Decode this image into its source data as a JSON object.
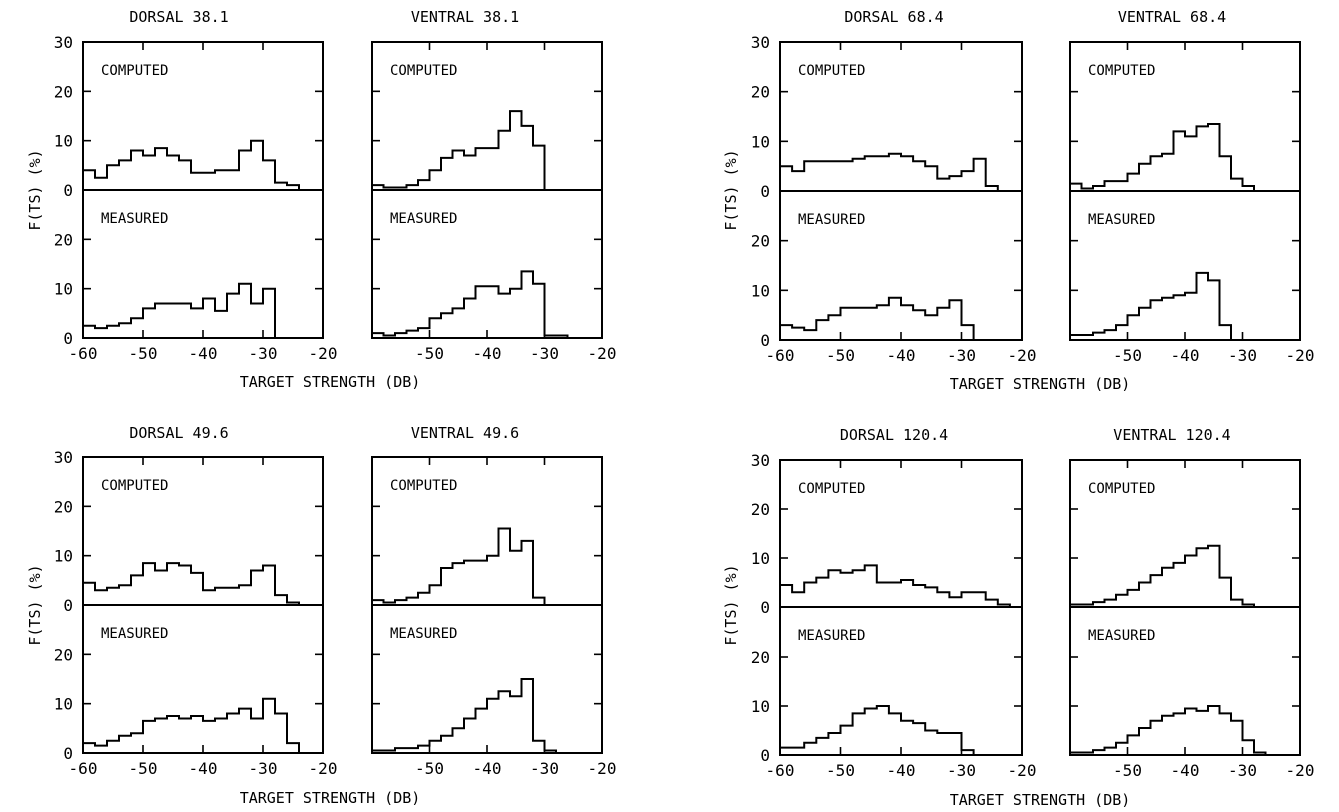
{
  "figure": {
    "x_tick_labels": [
      "-60",
      "-50",
      "-40",
      "-30",
      "-20"
    ],
    "y_tick_labels": [
      "0",
      "10",
      "20",
      "30"
    ],
    "y_axis_label": "F(TS) (%)",
    "x_axis_label": "TARGET STRENGTH (DB)",
    "computed_label": "COMPUTED",
    "measured_label": "MEASURED"
  },
  "chart_data": [
    {
      "type": "bar",
      "title": "DORSAL 38.1",
      "x_bin_edges": [
        -60,
        -58,
        -56,
        -54,
        -52,
        -50,
        -48,
        -46,
        -44,
        -42,
        -40,
        -38,
        -36,
        -34,
        -32,
        -30,
        -28,
        -26,
        -24,
        -22,
        -20
      ],
      "series": [
        {
          "name": "COMPUTED",
          "values": [
            4,
            2.5,
            5,
            6,
            8,
            7,
            8.5,
            7,
            6,
            3.5,
            3.5,
            4,
            4,
            8,
            10,
            6,
            1.5,
            1,
            0,
            0
          ]
        },
        {
          "name": "MEASURED",
          "values": [
            2.5,
            2,
            2.5,
            3,
            4,
            6,
            7,
            7,
            7,
            6,
            8,
            5.5,
            9,
            11,
            7,
            10,
            0,
            0,
            0,
            0
          ]
        }
      ],
      "xlim": [
        -60,
        -20
      ],
      "ylim": [
        0,
        30
      ]
    },
    {
      "type": "bar",
      "title": "VENTRAL 38.1",
      "x_bin_edges": [
        -60,
        -58,
        -56,
        -54,
        -52,
        -50,
        -48,
        -46,
        -44,
        -42,
        -40,
        -38,
        -36,
        -34,
        -32,
        -30,
        -28,
        -26,
        -24,
        -22,
        -20
      ],
      "series": [
        {
          "name": "COMPUTED",
          "values": [
            1,
            0.5,
            0.5,
            1,
            2,
            4,
            6.5,
            8,
            7,
            8.5,
            8.5,
            12,
            16,
            13,
            9,
            0,
            0,
            0,
            0,
            0
          ]
        },
        {
          "name": "MEASURED",
          "values": [
            1,
            0.5,
            1,
            1.5,
            2,
            4,
            5,
            6,
            8,
            10.5,
            10.5,
            9,
            10,
            13.5,
            11,
            0.5,
            0.5,
            0,
            0,
            0
          ]
        }
      ],
      "xlim": [
        -60,
        -20
      ],
      "ylim": [
        0,
        30
      ]
    },
    {
      "type": "bar",
      "title": "DORSAL 49.6",
      "x_bin_edges": [
        -60,
        -58,
        -56,
        -54,
        -52,
        -50,
        -48,
        -46,
        -44,
        -42,
        -40,
        -38,
        -36,
        -34,
        -32,
        -30,
        -28,
        -26,
        -24,
        -22,
        -20
      ],
      "series": [
        {
          "name": "COMPUTED",
          "values": [
            4.5,
            3,
            3.5,
            4,
            6,
            8.5,
            7,
            8.5,
            8,
            6.5,
            3,
            3.5,
            3.5,
            4,
            7,
            8,
            2,
            0.5,
            0,
            0
          ]
        },
        {
          "name": "MEASURED",
          "values": [
            2,
            1.5,
            2.5,
            3.5,
            4,
            6.5,
            7,
            7.5,
            7,
            7.5,
            6.5,
            7,
            8,
            9,
            7,
            11,
            8,
            2,
            0,
            0
          ]
        }
      ],
      "xlim": [
        -60,
        -20
      ],
      "ylim": [
        0,
        30
      ]
    },
    {
      "type": "bar",
      "title": "VENTRAL 49.6",
      "x_bin_edges": [
        -60,
        -58,
        -56,
        -54,
        -52,
        -50,
        -48,
        -46,
        -44,
        -42,
        -40,
        -38,
        -36,
        -34,
        -32,
        -30,
        -28,
        -26,
        -24,
        -22,
        -20
      ],
      "series": [
        {
          "name": "COMPUTED",
          "values": [
            1,
            0.5,
            1,
            1.5,
            2.5,
            4,
            7.5,
            8.5,
            9,
            9,
            10,
            15.5,
            11,
            13,
            1.5,
            0,
            0,
            0,
            0,
            0
          ]
        },
        {
          "name": "MEASURED",
          "values": [
            0.5,
            0.5,
            1,
            1,
            1.5,
            2.5,
            3.5,
            5,
            7,
            9,
            11,
            12.5,
            11.5,
            15,
            2.5,
            0.5,
            0,
            0,
            0,
            0
          ]
        }
      ],
      "xlim": [
        -60,
        -20
      ],
      "ylim": [
        0,
        30
      ]
    },
    {
      "type": "bar",
      "title": "DORSAL 68.4",
      "x_bin_edges": [
        -60,
        -58,
        -56,
        -54,
        -52,
        -50,
        -48,
        -46,
        -44,
        -42,
        -40,
        -38,
        -36,
        -34,
        -32,
        -30,
        -28,
        -26,
        -24,
        -22,
        -20
      ],
      "series": [
        {
          "name": "COMPUTED",
          "values": [
            5,
            4,
            6,
            6,
            6,
            6,
            6.5,
            7,
            7,
            7.5,
            7,
            6,
            5,
            2.5,
            3,
            4,
            6.5,
            1,
            0,
            0
          ]
        },
        {
          "name": "MEASURED",
          "values": [
            3,
            2.5,
            2,
            4,
            5,
            6.5,
            6.5,
            6.5,
            7,
            8.5,
            7,
            6,
            5,
            6.5,
            8,
            3,
            0,
            0,
            0,
            0
          ]
        }
      ],
      "xlim": [
        -60,
        -20
      ],
      "ylim": [
        0,
        30
      ]
    },
    {
      "type": "bar",
      "title": "VENTRAL 68.4",
      "x_bin_edges": [
        -60,
        -58,
        -56,
        -54,
        -52,
        -50,
        -48,
        -46,
        -44,
        -42,
        -40,
        -38,
        -36,
        -34,
        -32,
        -30,
        -28,
        -26,
        -24,
        -22,
        -20
      ],
      "series": [
        {
          "name": "COMPUTED",
          "values": [
            1.5,
            0.5,
            1,
            2,
            2,
            3.5,
            5.5,
            7,
            7.5,
            12,
            11,
            13,
            13.5,
            7,
            2.5,
            1,
            0,
            0,
            0,
            0
          ]
        },
        {
          "name": "MEASURED",
          "values": [
            1,
            1,
            1.5,
            2,
            3,
            5,
            6.5,
            8,
            8.5,
            9,
            9.5,
            13.5,
            12,
            3,
            0,
            0,
            0,
            0,
            0,
            0
          ]
        }
      ],
      "xlim": [
        -60,
        -20
      ],
      "ylim": [
        0,
        30
      ]
    },
    {
      "type": "bar",
      "title": "DORSAL 120.4",
      "x_bin_edges": [
        -60,
        -58,
        -56,
        -54,
        -52,
        -50,
        -48,
        -46,
        -44,
        -42,
        -40,
        -38,
        -36,
        -34,
        -32,
        -30,
        -28,
        -26,
        -24,
        -22,
        -20
      ],
      "series": [
        {
          "name": "COMPUTED",
          "values": [
            4.5,
            3,
            5,
            6,
            7.5,
            7,
            7.5,
            8.5,
            5,
            5,
            5.5,
            4.5,
            4,
            3,
            2,
            3,
            3,
            1.5,
            0.5,
            0
          ]
        },
        {
          "name": "MEASURED",
          "values": [
            1.5,
            1.5,
            2.5,
            3.5,
            4.5,
            6,
            8.5,
            9.5,
            10,
            8.5,
            7,
            6.5,
            5,
            4.5,
            4.5,
            1,
            0,
            0,
            0,
            0
          ]
        }
      ],
      "xlim": [
        -60,
        -20
      ],
      "ylim": [
        0,
        30
      ]
    },
    {
      "type": "bar",
      "title": "VENTRAL 120.4",
      "x_bin_edges": [
        -60,
        -58,
        -56,
        -54,
        -52,
        -50,
        -48,
        -46,
        -44,
        -42,
        -40,
        -38,
        -36,
        -34,
        -32,
        -30,
        -28,
        -26,
        -24,
        -22,
        -20
      ],
      "series": [
        {
          "name": "COMPUTED",
          "values": [
            0.5,
            0.5,
            1,
            1.5,
            2.5,
            3.5,
            5,
            6.5,
            8,
            9,
            10.5,
            12,
            12.5,
            6,
            1.5,
            0.5,
            0,
            0,
            0,
            0
          ]
        },
        {
          "name": "MEASURED",
          "values": [
            0.5,
            0.5,
            1,
            1.5,
            2.5,
            4,
            5.5,
            7,
            8,
            8.5,
            9.5,
            9,
            10,
            8.5,
            7,
            3,
            0.5,
            0,
            0,
            0
          ]
        }
      ],
      "xlim": [
        -60,
        -20
      ],
      "ylim": [
        0,
        30
      ]
    }
  ]
}
